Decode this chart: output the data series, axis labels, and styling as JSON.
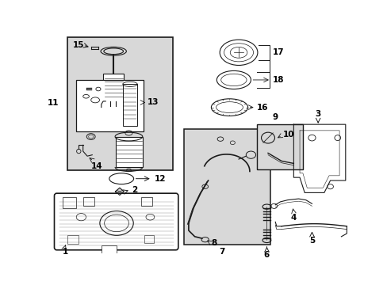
{
  "bg_color": "#ffffff",
  "line_color": "#1a1a1a",
  "text_color": "#000000",
  "shade_color": "#d8d8d8",
  "figsize": [
    4.89,
    3.6
  ],
  "dpi": 100,
  "fs": 7.5
}
